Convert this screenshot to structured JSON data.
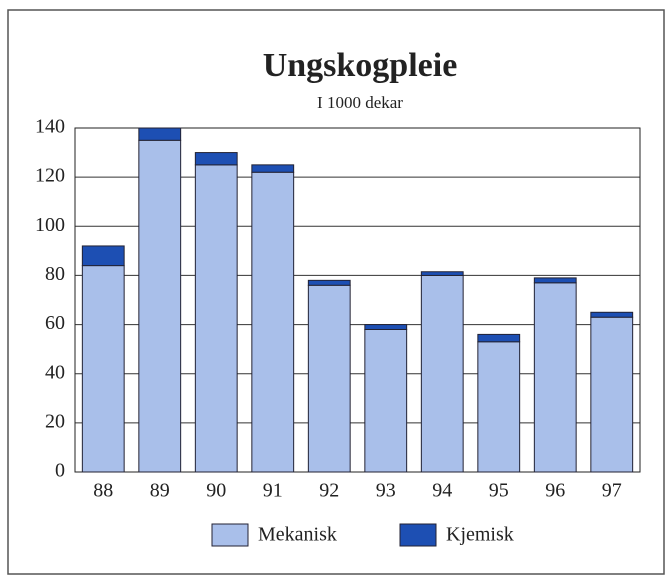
{
  "chart_data": {
    "type": "stacked_bar",
    "title": "Ungskogpleie",
    "subtitle": "I 1000 dekar",
    "categories": [
      "88",
      "89",
      "90",
      "91",
      "92",
      "93",
      "94",
      "95",
      "96",
      "97"
    ],
    "series": [
      {
        "name": "Mekanisk",
        "color": "#a9bfea",
        "values": [
          84,
          135,
          125,
          122,
          76,
          58,
          80,
          53,
          77,
          63
        ]
      },
      {
        "name": "Kjemisk",
        "color": "#1d4fb3",
        "values": [
          8,
          5,
          5,
          3,
          2,
          2,
          1.5,
          3,
          2,
          2
        ]
      }
    ],
    "ylim": [
      0,
      140
    ],
    "yticks": [
      0,
      20,
      40,
      60,
      80,
      100,
      120,
      140
    ],
    "grid": true
  }
}
